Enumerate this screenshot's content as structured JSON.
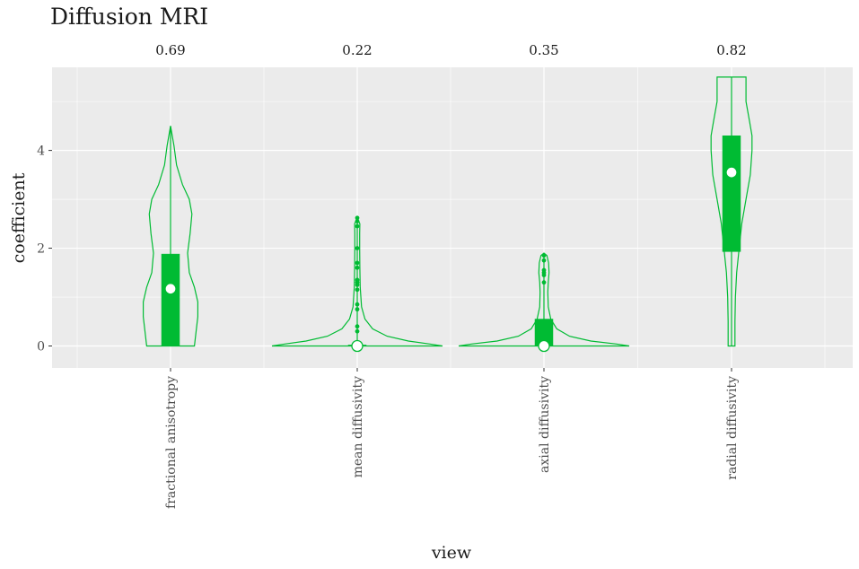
{
  "chart_data": {
    "type": "violin",
    "title": "Diffusion MRI",
    "xlabel": "view",
    "ylabel": "coefficient",
    "ylim": [
      -0.45,
      5.7
    ],
    "yticks": [
      0,
      2,
      4
    ],
    "ytick_labels": [
      "0",
      "2",
      "4"
    ],
    "grid": true,
    "legend": "none",
    "colors": {
      "fill": "#00bb33",
      "panel": "#ebebeb",
      "grid": "#ffffff",
      "median_point": "#ffffff"
    },
    "categories": [
      "fractional anisotropy",
      "mean diffusivity",
      "axial diffusivity",
      "radial diffusivity"
    ],
    "annotations": [
      "0.69",
      "0.22",
      "0.35",
      "0.82"
    ],
    "groups": [
      {
        "category": "fractional anisotropy",
        "annotation": "0.69",
        "min": 0,
        "max": 4.5,
        "q1": 0,
        "median": 1.17,
        "q3": 1.88,
        "outliers": [],
        "density": [
          [
            0,
            0.28
          ],
          [
            0.3,
            0.3
          ],
          [
            0.6,
            0.32
          ],
          [
            0.9,
            0.32
          ],
          [
            1.2,
            0.28
          ],
          [
            1.5,
            0.22
          ],
          [
            1.9,
            0.2
          ],
          [
            2.3,
            0.23
          ],
          [
            2.7,
            0.25
          ],
          [
            3.0,
            0.22
          ],
          [
            3.3,
            0.14
          ],
          [
            3.7,
            0.07
          ],
          [
            4.1,
            0.04
          ],
          [
            4.5,
            0.0
          ]
        ]
      },
      {
        "category": "mean diffusivity",
        "annotation": "0.22",
        "min": 0,
        "max": 2.63,
        "q1": 0,
        "median": 0,
        "q3": 0.02,
        "outliers": [
          0.3,
          0.4,
          0.75,
          0.85,
          1.15,
          1.25,
          1.3,
          1.35,
          1.6,
          1.7,
          2.0,
          2.45,
          2.55,
          2.62
        ],
        "density": [
          [
            0,
            1.0
          ],
          [
            0.04,
            0.85
          ],
          [
            0.1,
            0.6
          ],
          [
            0.2,
            0.35
          ],
          [
            0.35,
            0.18
          ],
          [
            0.55,
            0.09
          ],
          [
            0.8,
            0.05
          ],
          [
            1.2,
            0.035
          ],
          [
            1.6,
            0.03
          ],
          [
            2.0,
            0.028
          ],
          [
            2.3,
            0.028
          ],
          [
            2.5,
            0.03
          ],
          [
            2.63,
            0.0
          ]
        ]
      },
      {
        "category": "axial diffusivity",
        "annotation": "0.35",
        "min": 0,
        "max": 1.9,
        "q1": 0,
        "median": 0,
        "q3": 0.55,
        "outliers": [
          1.3,
          1.45,
          1.5,
          1.55,
          1.75,
          1.85
        ],
        "density": [
          [
            0,
            1.0
          ],
          [
            0.04,
            0.85
          ],
          [
            0.1,
            0.55
          ],
          [
            0.2,
            0.3
          ],
          [
            0.35,
            0.15
          ],
          [
            0.55,
            0.08
          ],
          [
            0.8,
            0.05
          ],
          [
            1.1,
            0.045
          ],
          [
            1.3,
            0.05
          ],
          [
            1.5,
            0.06
          ],
          [
            1.7,
            0.055
          ],
          [
            1.85,
            0.035
          ],
          [
            1.9,
            0.0
          ]
        ]
      },
      {
        "category": "radial diffusivity",
        "annotation": "0.82",
        "min": 0,
        "max": 5.5,
        "q1": 1.93,
        "median": 3.55,
        "q3": 4.3,
        "outliers": [],
        "density": [
          [
            0,
            0.04
          ],
          [
            0.5,
            0.04
          ],
          [
            1.0,
            0.045
          ],
          [
            1.5,
            0.06
          ],
          [
            2.0,
            0.09
          ],
          [
            2.5,
            0.12
          ],
          [
            3.0,
            0.17
          ],
          [
            3.5,
            0.22
          ],
          [
            4.0,
            0.24
          ],
          [
            4.3,
            0.24
          ],
          [
            4.6,
            0.21
          ],
          [
            5.0,
            0.17
          ],
          [
            5.5,
            0.17
          ]
        ]
      }
    ]
  }
}
